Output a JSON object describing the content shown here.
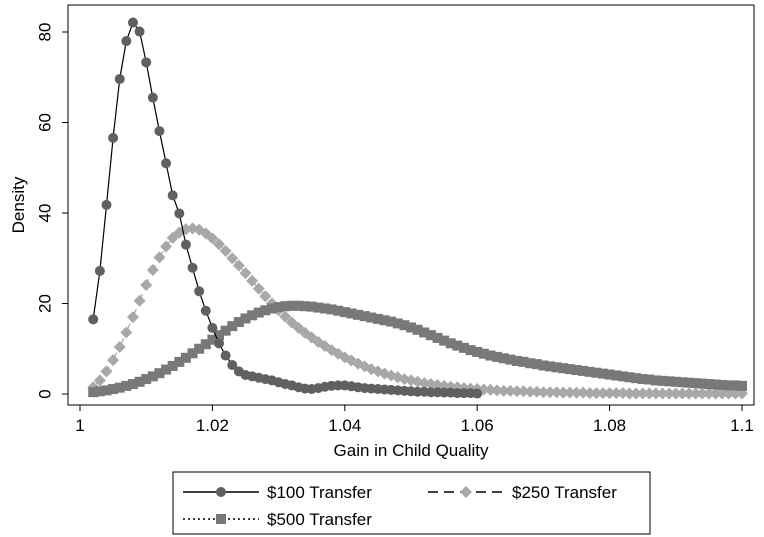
{
  "chart_data": {
    "type": "line",
    "xlabel": "Gain in Child Quality",
    "ylabel": "Density",
    "xlim": [
      1.0,
      1.1
    ],
    "ylim": [
      0,
      85
    ],
    "xticks": [
      1,
      1.02,
      1.04,
      1.06,
      1.08,
      1.1
    ],
    "xtick_labels": [
      "1",
      "1.02",
      "1.04",
      "1.06",
      "1.08",
      "1.1"
    ],
    "yticks": [
      0,
      20,
      40,
      60,
      80
    ],
    "ytick_labels": [
      "0",
      "20",
      "40",
      "60",
      "80"
    ],
    "grid": false,
    "legend_position": "bottom",
    "series": [
      {
        "name": "$100 Transfer",
        "color": "#606060",
        "marker": "circle",
        "line_style": "solid",
        "x": [
          1.002,
          1.003,
          1.004,
          1.005,
          1.006,
          1.007,
          1.008,
          1.009,
          1.01,
          1.011,
          1.012,
          1.013,
          1.014,
          1.015,
          1.016,
          1.017,
          1.018,
          1.019,
          1.02,
          1.021,
          1.022,
          1.023,
          1.024,
          1.025,
          1.026,
          1.027,
          1.028,
          1.029,
          1.03,
          1.031,
          1.032,
          1.033,
          1.034,
          1.035,
          1.036,
          1.037,
          1.038,
          1.039,
          1.04,
          1.041,
          1.042,
          1.043,
          1.044,
          1.045,
          1.046,
          1.047,
          1.048,
          1.049,
          1.05,
          1.051,
          1.052,
          1.053,
          1.054,
          1.055,
          1.056,
          1.057,
          1.058,
          1.059,
          1.06
        ],
        "y": [
          16.5,
          27.2,
          41.8,
          56.6,
          69.6,
          78.0,
          82.1,
          80.1,
          73.3,
          65.5,
          58.1,
          51.0,
          43.9,
          39.9,
          33.0,
          27.9,
          22.7,
          18.4,
          14.6,
          11.2,
          8.5,
          6.4,
          5.0,
          4.2,
          3.9,
          3.6,
          3.3,
          3.0,
          2.6,
          2.2,
          1.9,
          1.5,
          1.2,
          1.1,
          1.3,
          1.6,
          1.8,
          1.9,
          1.9,
          1.7,
          1.5,
          1.3,
          1.2,
          1.1,
          1.0,
          0.9,
          0.8,
          0.7,
          0.6,
          0.5,
          0.5,
          0.4,
          0.4,
          0.3,
          0.3,
          0.2,
          0.2,
          0.2,
          0.1
        ]
      },
      {
        "name": "$250 Transfer",
        "color": "#a8a8a8",
        "marker": "diamond",
        "line_style": "dashed",
        "x": [
          1.002,
          1.003,
          1.004,
          1.005,
          1.006,
          1.007,
          1.008,
          1.009,
          1.01,
          1.011,
          1.012,
          1.013,
          1.014,
          1.015,
          1.016,
          1.017,
          1.018,
          1.019,
          1.02,
          1.021,
          1.022,
          1.023,
          1.024,
          1.025,
          1.026,
          1.027,
          1.028,
          1.029,
          1.03,
          1.031,
          1.032,
          1.033,
          1.034,
          1.035,
          1.036,
          1.037,
          1.038,
          1.039,
          1.04,
          1.041,
          1.042,
          1.043,
          1.044,
          1.045,
          1.046,
          1.047,
          1.048,
          1.049,
          1.05,
          1.051,
          1.052,
          1.053,
          1.054,
          1.055,
          1.056,
          1.057,
          1.058,
          1.059,
          1.06,
          1.061,
          1.062,
          1.063,
          1.064,
          1.065,
          1.066,
          1.067,
          1.068,
          1.069,
          1.07,
          1.071,
          1.072,
          1.073,
          1.074,
          1.075,
          1.076,
          1.077,
          1.078,
          1.079,
          1.08,
          1.081,
          1.082,
          1.083,
          1.084,
          1.085,
          1.086,
          1.087,
          1.088,
          1.089,
          1.09,
          1.091,
          1.092,
          1.093,
          1.094,
          1.095,
          1.096,
          1.097,
          1.098,
          1.099,
          1.1
        ],
        "y": [
          1.5,
          3.0,
          5.0,
          7.5,
          10.4,
          13.6,
          17.0,
          20.6,
          24.1,
          27.4,
          30.2,
          32.6,
          34.5,
          35.7,
          36.4,
          36.6,
          36.3,
          35.5,
          34.4,
          33.1,
          31.6,
          30.0,
          28.4,
          26.7,
          25.0,
          23.3,
          21.6,
          20.0,
          18.5,
          17.1,
          15.8,
          14.6,
          13.5,
          12.5,
          11.5,
          10.6,
          9.7,
          8.9,
          8.1,
          7.4,
          6.7,
          6.1,
          5.5,
          5.0,
          4.5,
          4.1,
          3.7,
          3.3,
          3.0,
          2.7,
          2.4,
          2.2,
          2.0,
          1.8,
          1.6,
          1.5,
          1.3,
          1.2,
          1.1,
          1.0,
          0.9,
          0.8,
          0.7,
          0.7,
          0.6,
          0.6,
          0.5,
          0.5,
          0.4,
          0.4,
          0.4,
          0.3,
          0.3,
          0.3,
          0.3,
          0.2,
          0.2,
          0.2,
          0.2,
          0.2,
          0.2,
          0.1,
          0.1,
          0.1,
          0.1,
          0.1,
          0.1,
          0.1,
          0.1,
          0.1,
          0.1,
          0.1,
          0.1,
          0.1,
          0.1,
          0.1,
          0.1,
          0.1,
          0.1
        ]
      },
      {
        "name": "$500 Transfer",
        "color": "#787878",
        "marker": "square",
        "line_style": "dotted",
        "x": [
          1.002,
          1.003,
          1.004,
          1.005,
          1.006,
          1.007,
          1.008,
          1.009,
          1.01,
          1.011,
          1.012,
          1.013,
          1.014,
          1.015,
          1.016,
          1.017,
          1.018,
          1.019,
          1.02,
          1.021,
          1.022,
          1.023,
          1.024,
          1.025,
          1.026,
          1.027,
          1.028,
          1.029,
          1.03,
          1.031,
          1.032,
          1.033,
          1.034,
          1.035,
          1.036,
          1.037,
          1.038,
          1.039,
          1.04,
          1.041,
          1.042,
          1.043,
          1.044,
          1.045,
          1.046,
          1.047,
          1.048,
          1.049,
          1.05,
          1.051,
          1.052,
          1.053,
          1.054,
          1.055,
          1.056,
          1.057,
          1.058,
          1.059,
          1.06,
          1.061,
          1.062,
          1.063,
          1.064,
          1.065,
          1.066,
          1.067,
          1.068,
          1.069,
          1.07,
          1.071,
          1.072,
          1.073,
          1.074,
          1.075,
          1.076,
          1.077,
          1.078,
          1.079,
          1.08,
          1.081,
          1.082,
          1.083,
          1.084,
          1.085,
          1.086,
          1.087,
          1.088,
          1.089,
          1.09,
          1.091,
          1.092,
          1.093,
          1.094,
          1.095,
          1.096,
          1.097,
          1.098,
          1.099,
          1.1
        ],
        "y": [
          0.4,
          0.6,
          0.8,
          1.1,
          1.4,
          1.8,
          2.2,
          2.7,
          3.3,
          3.9,
          4.6,
          5.4,
          6.2,
          7.1,
          8.0,
          9.0,
          10.0,
          11.0,
          12.0,
          13.0,
          14.0,
          15.0,
          15.9,
          16.7,
          17.4,
          18.0,
          18.5,
          18.9,
          19.2,
          19.4,
          19.5,
          19.5,
          19.4,
          19.3,
          19.1,
          18.9,
          18.7,
          18.4,
          18.1,
          17.8,
          17.5,
          17.2,
          16.9,
          16.6,
          16.3,
          16.0,
          15.6,
          15.2,
          14.7,
          14.2,
          13.6,
          13.0,
          12.4,
          11.8,
          11.2,
          10.7,
          10.2,
          9.7,
          9.3,
          8.9,
          8.5,
          8.2,
          7.9,
          7.6,
          7.3,
          7.1,
          6.8,
          6.6,
          6.3,
          6.1,
          5.9,
          5.7,
          5.5,
          5.3,
          5.1,
          4.9,
          4.7,
          4.5,
          4.3,
          4.1,
          3.9,
          3.7,
          3.5,
          3.3,
          3.2,
          3.0,
          2.9,
          2.8,
          2.7,
          2.6,
          2.5,
          2.4,
          2.3,
          2.2,
          2.1,
          2.0,
          1.9,
          1.9,
          1.8
        ]
      }
    ]
  }
}
